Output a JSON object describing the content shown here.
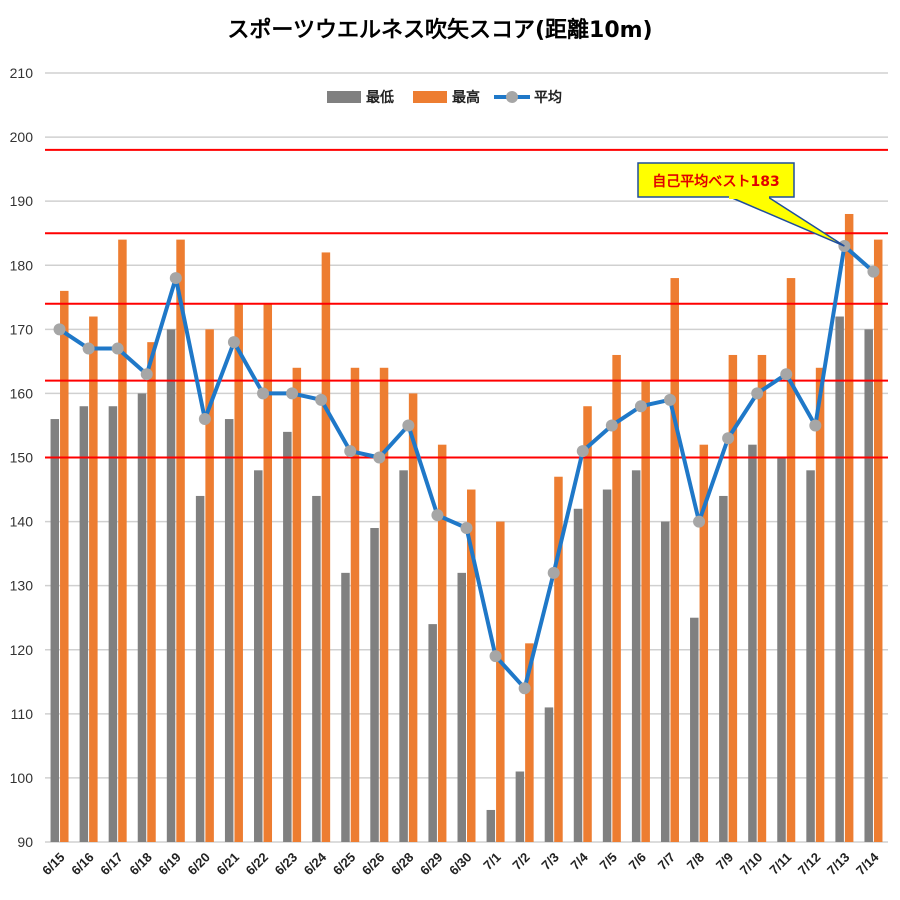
{
  "chart_data": {
    "type": "bar",
    "title": "スポーツウエルネス吹矢スコア(距離10m)",
    "categories": [
      "6/15",
      "6/16",
      "6/17",
      "6/18",
      "6/19",
      "6/20",
      "6/21",
      "6/22",
      "6/23",
      "6/24",
      "6/25",
      "6/26",
      "6/28",
      "6/29",
      "6/30",
      "7/1",
      "7/2",
      "7/3",
      "7/4",
      "7/5",
      "7/6",
      "7/7",
      "7/8",
      "7/9",
      "7/10",
      "7/11",
      "7/12",
      "7/13",
      "7/14"
    ],
    "series": [
      {
        "name": "最低",
        "kind": "bar",
        "color": "#808080",
        "values": [
          156,
          158,
          158,
          160,
          170,
          144,
          156,
          148,
          154,
          144,
          132,
          139,
          148,
          124,
          132,
          95,
          101,
          111,
          142,
          145,
          148,
          140,
          125,
          144,
          152,
          150,
          148,
          172,
          170
        ]
      },
      {
        "name": "最高",
        "kind": "bar",
        "color": "#ed7d31",
        "values": [
          176,
          172,
          184,
          168,
          184,
          170,
          174,
          174,
          164,
          182,
          164,
          164,
          160,
          152,
          145,
          140,
          121,
          147,
          158,
          166,
          162,
          178,
          152,
          166,
          166,
          178,
          164,
          188,
          184
        ]
      },
      {
        "name": "平均",
        "kind": "line",
        "color": "#1f78c8",
        "marker_color": "#a6a6a6",
        "values": [
          170,
          167,
          167,
          163,
          178,
          156,
          168,
          160,
          160,
          159,
          151,
          150,
          155,
          141,
          139,
          119,
          114,
          132,
          151,
          155,
          158,
          159,
          140,
          153,
          160,
          163,
          155,
          183,
          179
        ]
      }
    ],
    "ylim": [
      90,
      210
    ],
    "yticks": [
      90,
      100,
      110,
      120,
      130,
      140,
      150,
      160,
      170,
      180,
      190,
      200,
      210
    ],
    "reference_lines": [
      150,
      162,
      174,
      185,
      198
    ],
    "reference_line_color": "#ff0000",
    "grid": true,
    "legend_position": "top",
    "annotation": {
      "text": "自己平均ベスト183",
      "target_category": "7/13",
      "target_value": 183,
      "fill": "#ffff00",
      "border": "#1f4e9c"
    }
  }
}
